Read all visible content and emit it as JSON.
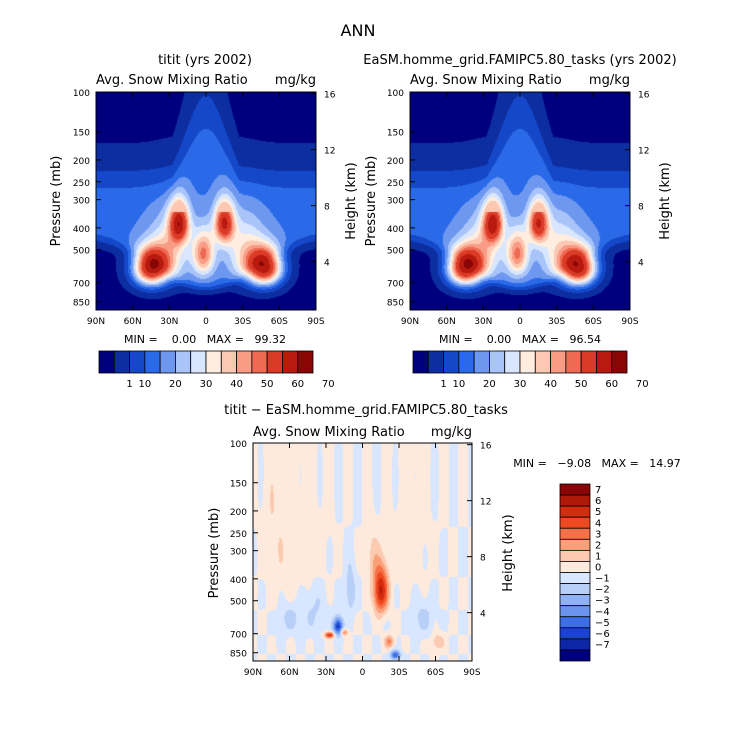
{
  "main_title": "ANN",
  "panels": [
    {
      "title": "titit (yrs 2002)",
      "subtitle_left": "Avg. Snow Mixing Ratio",
      "subtitle_right": "mg/kg",
      "min_max": "MIN =    0.00   MAX =   99.32"
    },
    {
      "title": "EaSM.homme_grid.FAMIPC5.80_tasks (yrs 2002)",
      "subtitle_left": "Avg. Snow Mixing Ratio",
      "subtitle_right": "mg/kg",
      "min_max": "MIN =    0.00   MAX =   96.54"
    },
    {
      "title": "titit − EaSM.homme_grid.FAMIPC5.80_tasks",
      "subtitle_left": "Avg. Snow Mixing Ratio",
      "subtitle_right": "mg/kg",
      "min_max": "MIN =   −9.08   MAX =   14.97"
    }
  ],
  "chart_data": [
    {
      "type": "heatmap",
      "title": "titit (yrs 2002)",
      "xlabel": "",
      "ylabel": "Pressure (mb)",
      "y2label": "Height (km)",
      "x_ticks": [
        "90N",
        "60N",
        "30N",
        "0",
        "30S",
        "60S",
        "90S"
      ],
      "x_range": [
        90,
        -90
      ],
      "y_ticks": [
        100,
        150,
        200,
        250,
        300,
        400,
        500,
        700,
        850
      ],
      "y_range": [
        100,
        925
      ],
      "y2_ticks": [
        16,
        12,
        8,
        4
      ],
      "colorbar_labels": [
        "1",
        "10",
        "20",
        "30",
        "40",
        "50",
        "60",
        "70"
      ],
      "colorbar_colors": [
        "#00007f",
        "#0d2ea0",
        "#1448c8",
        "#2a6ae8",
        "#6e98f0",
        "#a8c4f8",
        "#d8e6ff",
        "#ffeee0",
        "#fcc8b2",
        "#f89c86",
        "#ee6a52",
        "#da3a26",
        "#b81a10",
        "#8a0606"
      ],
      "features": [
        {
          "type": "peak",
          "lat": 45,
          "p": 600,
          "value": 72
        },
        {
          "type": "peak",
          "lat": -48,
          "p": 600,
          "value": 72
        },
        {
          "type": "peak",
          "lat": 22,
          "p": 380,
          "value": 62
        },
        {
          "type": "peak",
          "lat": -15,
          "p": 380,
          "value": 60
        },
        {
          "type": "minimum",
          "lat": 0,
          "p": 850,
          "value": 0
        }
      ],
      "min": 0.0,
      "max": 99.32
    },
    {
      "type": "heatmap",
      "title": "EaSM.homme_grid.FAMIPC5.80_tasks (yrs 2002)",
      "xlabel": "",
      "ylabel": "Pressure (mb)",
      "y2label": "Height (km)",
      "x_ticks": [
        "90N",
        "60N",
        "30N",
        "0",
        "30S",
        "60S",
        "90S"
      ],
      "x_range": [
        90,
        -90
      ],
      "y_ticks": [
        100,
        150,
        200,
        250,
        300,
        400,
        500,
        700,
        850
      ],
      "y_range": [
        100,
        925
      ],
      "y2_ticks": [
        16,
        12,
        8,
        4
      ],
      "colorbar_labels": [
        "1",
        "10",
        "20",
        "30",
        "40",
        "50",
        "60",
        "70"
      ],
      "colorbar_colors": [
        "#00007f",
        "#0d2ea0",
        "#1448c8",
        "#2a6ae8",
        "#6e98f0",
        "#a8c4f8",
        "#d8e6ff",
        "#ffeee0",
        "#fcc8b2",
        "#f89c86",
        "#ee6a52",
        "#da3a26",
        "#b81a10",
        "#8a0606"
      ],
      "features": [
        {
          "type": "peak",
          "lat": 45,
          "p": 600,
          "value": 72
        },
        {
          "type": "peak",
          "lat": -48,
          "p": 600,
          "value": 72
        },
        {
          "type": "peak",
          "lat": 22,
          "p": 380,
          "value": 60
        },
        {
          "type": "peak",
          "lat": -15,
          "p": 380,
          "value": 58
        },
        {
          "type": "minimum",
          "lat": 0,
          "p": 850,
          "value": 0
        }
      ],
      "min": 0.0,
      "max": 96.54
    },
    {
      "type": "heatmap",
      "title": "titit − EaSM.homme_grid.FAMIPC5.80_tasks",
      "xlabel": "",
      "ylabel": "Pressure (mb)",
      "y2label": "Height (km)",
      "x_ticks": [
        "90N",
        "60N",
        "30N",
        "0",
        "30S",
        "60S",
        "90S"
      ],
      "x_range": [
        90,
        -90
      ],
      "y_ticks": [
        100,
        150,
        200,
        250,
        300,
        400,
        500,
        700,
        850
      ],
      "y_range": [
        100,
        925
      ],
      "y2_ticks": [
        16,
        12,
        8,
        4
      ],
      "colorbar_labels": [
        "7",
        "6",
        "5",
        "4",
        "3",
        "2",
        "1",
        "0",
        "−1",
        "−2",
        "−3",
        "−4",
        "−5",
        "−6",
        "−7"
      ],
      "colorbar_colors": [
        "#8a0606",
        "#b01808",
        "#d42c10",
        "#ee4a22",
        "#f87048",
        "#f8a078",
        "#fccab0",
        "#feeadc",
        "#d8e6ff",
        "#b8cff8",
        "#90b2f4",
        "#6a94ee",
        "#3c6ee6",
        "#1a44cc",
        "#0c26a6",
        "#00007f"
      ],
      "features": [
        {
          "type": "peak",
          "lat": -15,
          "p": 450,
          "value": 6
        },
        {
          "type": "peak",
          "lat": 27,
          "p": 710,
          "value": 5
        },
        {
          "type": "trough",
          "lat": 20,
          "p": 650,
          "value": -6
        },
        {
          "type": "trough",
          "lat": -27,
          "p": 870,
          "value": -5
        }
      ],
      "min": -9.08,
      "max": 14.97
    }
  ]
}
